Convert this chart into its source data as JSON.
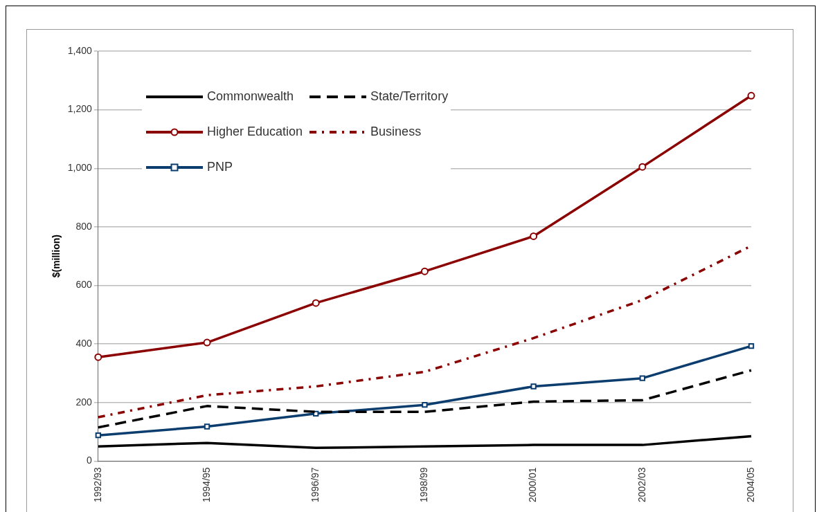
{
  "chart_data": {
    "type": "line",
    "ylabel": "$(million)",
    "categories": [
      "1992/93",
      "1994/95",
      "1996/97",
      "1998/99",
      "2000/01",
      "2002/03",
      "2004/05"
    ],
    "series": [
      {
        "name": "Commonwealth",
        "color": "#000000",
        "line_style": "solid",
        "marker": "none",
        "values": [
          50,
          62,
          45,
          50,
          55,
          55,
          85
        ]
      },
      {
        "name": "State/Territory",
        "color": "#000000",
        "line_style": "dashed",
        "marker": "none",
        "values": [
          115,
          188,
          168,
          168,
          203,
          208,
          310
        ]
      },
      {
        "name": "Higher Education",
        "color": "#8b0000",
        "line_style": "solid",
        "marker": "circle",
        "values": [
          355,
          405,
          540,
          648,
          768,
          1005,
          1248
        ]
      },
      {
        "name": "Business",
        "color": "#8b0000",
        "line_style": "dotted",
        "marker": "none",
        "values": [
          150,
          225,
          255,
          305,
          420,
          550,
          735
        ]
      },
      {
        "name": "PNP",
        "color": "#0b3d6e",
        "line_style": "solid",
        "marker": "square",
        "values": [
          88,
          118,
          162,
          192,
          255,
          283,
          393
        ]
      }
    ],
    "ylim": [
      0,
      1400
    ],
    "yticks": [
      {
        "value": 0,
        "label": "0"
      },
      {
        "value": 200,
        "label": "200"
      },
      {
        "value": 400,
        "label": "400"
      },
      {
        "value": 600,
        "label": "600"
      },
      {
        "value": 800,
        "label": "800"
      },
      {
        "value": 1000,
        "label": "1,000"
      },
      {
        "value": 1200,
        "label": "1,200"
      },
      {
        "value": 1400,
        "label": "1,400"
      }
    ],
    "grid": "y",
    "legend": "top left"
  }
}
